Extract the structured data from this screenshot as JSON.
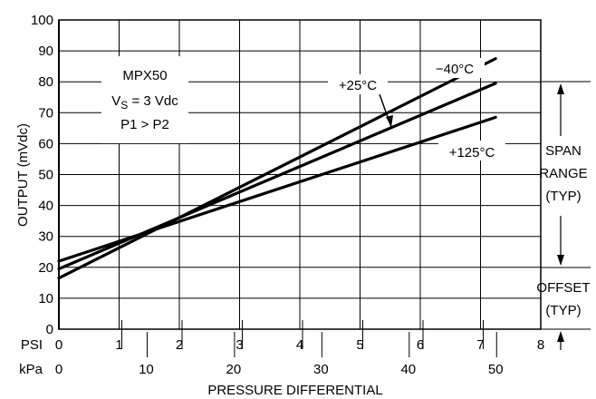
{
  "chart_data": {
    "type": "line",
    "title": "",
    "xlabel": "PRESSURE DIFFERENTIAL",
    "ylabel": "OUTPUT (mVdc)",
    "x_unit_primary": "PSI",
    "x_unit_secondary": "kPa",
    "xlim": [
      0,
      8
    ],
    "ylim": [
      0,
      100
    ],
    "psi_ticks": [
      0,
      1,
      2,
      3,
      4,
      5,
      6,
      7,
      8
    ],
    "kpa_ticks": [
      0,
      10,
      20,
      30,
      40,
      50
    ],
    "y_ticks": [
      0,
      10,
      20,
      30,
      40,
      50,
      60,
      70,
      80,
      90,
      100
    ],
    "grid": true,
    "info_box": [
      "MPX50",
      "V",
      "S",
      " = 3 Vdc",
      "P1 > P2"
    ],
    "series": [
      {
        "name": "−40°C",
        "x": [
          0,
          7.25
        ],
        "y": [
          16.5,
          87.5
        ]
      },
      {
        "name": "+25°C",
        "x": [
          0,
          7.25
        ],
        "y": [
          19.5,
          79.5
        ]
      },
      {
        "name": "+125°C",
        "x": [
          0,
          7.25
        ],
        "y": [
          22,
          68.5
        ]
      }
    ],
    "annotations": {
      "span": [
        "SPAN",
        "RANGE",
        "(TYP)"
      ],
      "offset": [
        "OFFSET",
        "(TYP)"
      ]
    }
  }
}
